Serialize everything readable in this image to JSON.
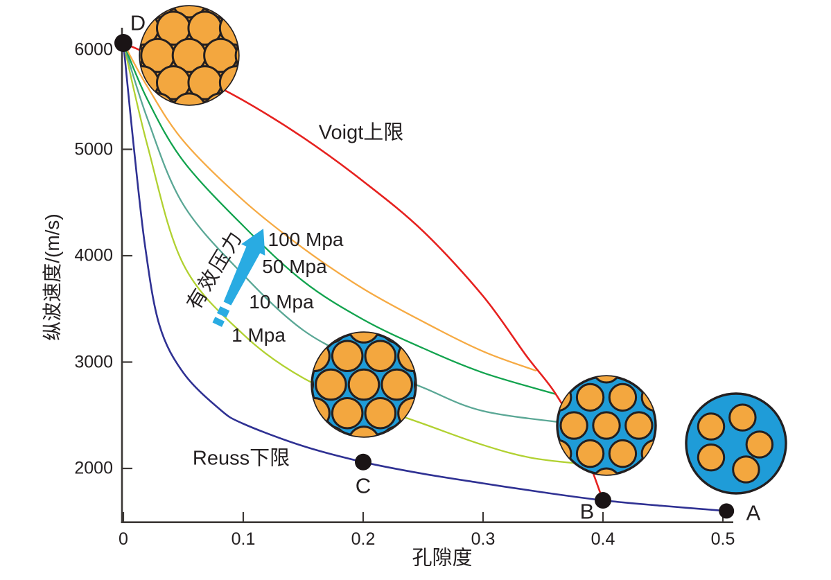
{
  "chart_data": {
    "type": "line",
    "title": "",
    "xlabel": "孔隙度",
    "ylabel": "纵波速度/(m/s)",
    "xlim": [
      0,
      0.55
    ],
    "ylim": [
      1500,
      6300
    ],
    "grid": false,
    "legend": "inline-labels",
    "x_ticks": [
      "0",
      "0.1",
      "0.2",
      "0.3",
      "0.4",
      "0.5"
    ],
    "x_tick_values": [
      0,
      0.1,
      0.2,
      0.3,
      0.4,
      0.5
    ],
    "y_ticks": [
      "2000",
      "3000",
      "4000",
      "5000",
      "6000"
    ],
    "y_tick_values": [
      2000,
      3000,
      4000,
      5000,
      6000
    ],
    "series": [
      {
        "name": "Voigt上限",
        "color": "#e6211f",
        "x": [
          0,
          0.05,
          0.1,
          0.15,
          0.2,
          0.25,
          0.3,
          0.336,
          0.36,
          0.38,
          0.4
        ],
        "v": [
          6000,
          5750,
          5460,
          5110,
          4700,
          4230,
          3620,
          3060,
          2710,
          2300,
          1700
        ]
      },
      {
        "name": "100 Mpa",
        "color": "#f6aa43",
        "x": [
          0,
          0.02,
          0.05,
          0.1,
          0.15,
          0.2,
          0.25,
          0.3,
          0.344
        ],
        "v": [
          6000,
          5590,
          5080,
          4520,
          4070,
          3690,
          3380,
          3100,
          2920
        ]
      },
      {
        "name": "50 Mpa",
        "color": "#12a34e",
        "x": [
          0,
          0.02,
          0.05,
          0.1,
          0.15,
          0.2,
          0.25,
          0.3,
          0.36
        ],
        "v": [
          6000,
          5470,
          4890,
          4280,
          3760,
          3400,
          3130,
          2900,
          2700
        ]
      },
      {
        "name": "10 Mpa",
        "color": "#5aa795",
        "x": [
          0,
          0.02,
          0.05,
          0.1,
          0.15,
          0.2,
          0.25,
          0.3,
          0.375
        ],
        "v": [
          6000,
          5290,
          4480,
          3820,
          3300,
          3000,
          2760,
          2540,
          2420
        ]
      },
      {
        "name": "1 Mpa",
        "color": "#b1d131",
        "x": [
          0,
          0.02,
          0.05,
          0.1,
          0.15,
          0.2,
          0.25,
          0.3,
          0.34,
          0.385
        ],
        "v": [
          6000,
          5040,
          3920,
          3260,
          2850,
          2620,
          2420,
          2220,
          2100,
          2040
        ]
      },
      {
        "name": "Reuss下限",
        "color": "#2f3193",
        "x": [
          0,
          0.008,
          0.018,
          0.03,
          0.05,
          0.08,
          0.1,
          0.15,
          0.2,
          0.25,
          0.3,
          0.35,
          0.4,
          0.45,
          0.503
        ],
        "v": [
          6000,
          5100,
          4100,
          3350,
          2900,
          2560,
          2420,
          2210,
          2060,
          1950,
          1860,
          1775,
          1700,
          1648,
          1600
        ]
      }
    ],
    "points": [
      {
        "label": "D",
        "x": 0,
        "v": 6000
      },
      {
        "label": "C",
        "x": 0.2,
        "v": 2060
      },
      {
        "label": "B",
        "x": 0.4,
        "v": 1700
      },
      {
        "label": "A",
        "x": 0.503,
        "v": 1600
      }
    ],
    "pressure_arrow": {
      "label": "有效压力",
      "color": "#29abe2"
    },
    "illustrations": {
      "grain_color": "#f3a73f",
      "pore_color": "#1f9cd8",
      "outline_color": "#231f20",
      "packs": [
        {
          "name": "grain-pack-zero-porosity",
          "cx": 273,
          "cy": 80,
          "r": 71,
          "bg": "#f3a73f",
          "style": "hex",
          "grain": 0.335,
          "space": 0.64
        },
        {
          "name": "grain-pack-low-porosity",
          "cx": 525,
          "cy": 555,
          "r": 75,
          "bg": "#1f9cd8",
          "style": "hex",
          "grain": 0.29,
          "space": 0.635
        },
        {
          "name": "grain-pack-critical-porosity",
          "cx": 875,
          "cy": 614,
          "r": 71,
          "bg": "#1f9cd8",
          "style": "hex",
          "grain": 0.27,
          "space": 0.66
        },
        {
          "name": "grain-pack-suspension",
          "cx": 1062,
          "cy": 640,
          "r": 72,
          "bg": "#1f9cd8",
          "style": "scatter",
          "grain": 0.26,
          "grains": [
            [
              -0.5,
              -0.34
            ],
            [
              0.13,
              -0.52
            ],
            [
              0.47,
              0.02
            ],
            [
              -0.5,
              0.28
            ],
            [
              0.2,
              0.52
            ]
          ]
        }
      ]
    },
    "axis_color": "#3b3735",
    "text_color": "#231f20"
  }
}
